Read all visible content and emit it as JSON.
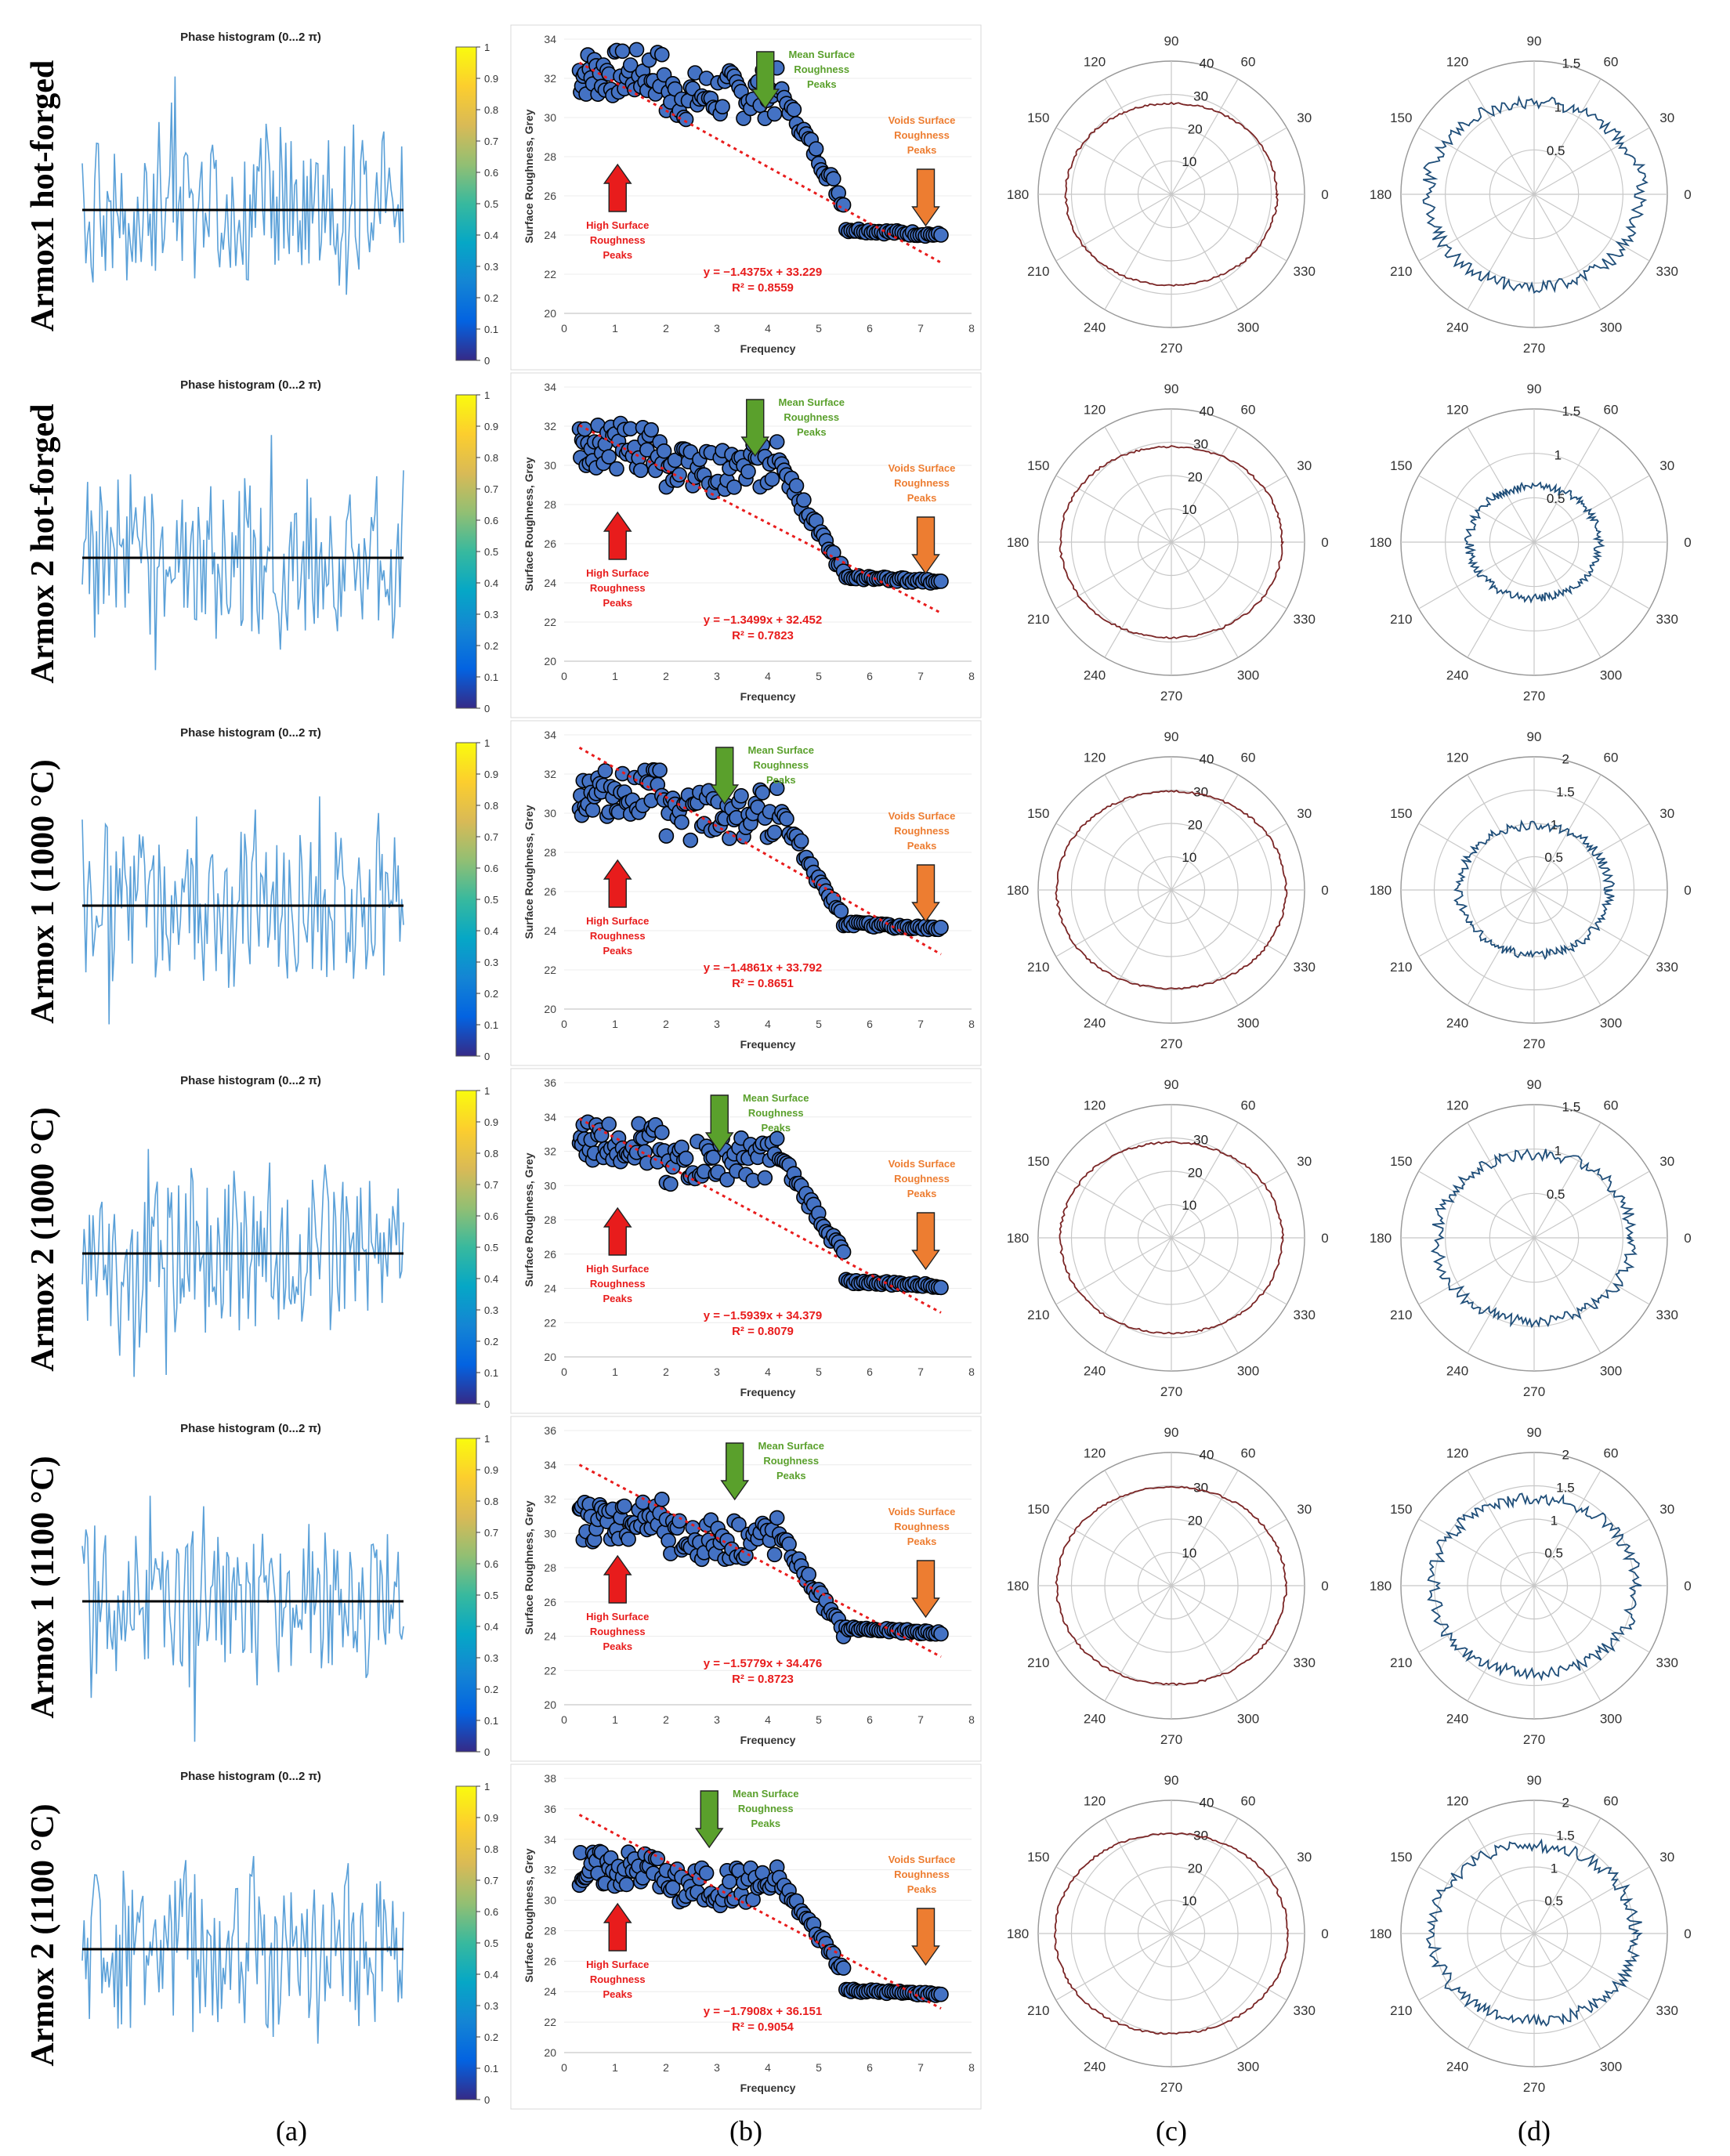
{
  "rows": [
    {
      "label": "Armox1 hot-forged",
      "phase_title": "Phase histogram (0...2 π)",
      "colorbar_ticks": [
        "0",
        "0.1",
        "0.2",
        "0.3",
        "0.4",
        "0.5",
        "0.6",
        "0.7",
        "0.8",
        "0.9",
        "1"
      ],
      "scatter": {
        "ylabel": "Surface Roughness, Grey",
        "xlabel": "Frequency",
        "ylim": [
          20,
          34
        ],
        "yticks": [
          "20",
          "22",
          "24",
          "26",
          "28",
          "30",
          "32",
          "34"
        ],
        "xticks": [
          "0",
          "1",
          "2",
          "3",
          "4",
          "5",
          "6",
          "7",
          "8"
        ],
        "eq": "y = −1.4375x + 33.229",
        "r2": "R² = 0.8559",
        "slope": -1.4375,
        "intercept": 33.229,
        "high_label": [
          "High Surface",
          "Roughness",
          "Peaks"
        ],
        "mean_label": [
          "Mean Surface",
          "Roughness",
          "Peaks"
        ],
        "voids_label": [
          "Voids Surface",
          "Roughness",
          "Peaks"
        ],
        "gpx": 3.9,
        "gpy": 32.5
      },
      "polar_c": {
        "rticks": [
          "10",
          "20",
          "30",
          "40"
        ],
        "rmax": 40,
        "rmean": 29.5,
        "angles": [
          "0",
          "30",
          "60",
          "90",
          "120",
          "150",
          "180",
          "210",
          "240",
          "270",
          "300",
          "330"
        ]
      },
      "polar_d": {
        "rticks": [
          "0.5",
          "1",
          "1.5"
        ],
        "rmax": 1.5,
        "rmean": 1.12,
        "angles": [
          "0",
          "30",
          "60",
          "90",
          "120",
          "150",
          "180",
          "210",
          "240",
          "270",
          "300",
          "330"
        ]
      }
    },
    {
      "label": "Armox 2 hot-forged",
      "phase_title": "Phase histogram (0...2 π)",
      "colorbar_ticks": [
        "0",
        "0.1",
        "0.2",
        "0.3",
        "0.4",
        "0.5",
        "0.6",
        "0.7",
        "0.8",
        "0.9",
        "1"
      ],
      "scatter": {
        "ylabel": "Surface Roughness, Grey",
        "xlabel": "Frequency",
        "ylim": [
          20,
          34
        ],
        "yticks": [
          "20",
          "22",
          "24",
          "26",
          "28",
          "30",
          "32",
          "34"
        ],
        "xticks": [
          "0",
          "1",
          "2",
          "3",
          "4",
          "5",
          "6",
          "7",
          "8"
        ],
        "eq": "y = −1.3499x + 32.452",
        "r2": "R² = 0.7823",
        "slope": -1.3499,
        "intercept": 32.452,
        "high_label": [
          "High Surface",
          "Roughness",
          "Peaks"
        ],
        "mean_label": [
          "Mean Surface",
          "Roughness",
          "Peaks"
        ],
        "voids_label": [
          "Voids Surface",
          "Roughness",
          "Peaks"
        ],
        "gpx": 3.7,
        "gpy": 31.2
      },
      "polar_c": {
        "rticks": [
          "10",
          "20",
          "30",
          "40"
        ],
        "rmax": 40,
        "rmean": 31,
        "angles": [
          "0",
          "30",
          "60",
          "90",
          "120",
          "150",
          "180",
          "210",
          "240",
          "270",
          "300",
          "330"
        ]
      },
      "polar_d": {
        "rticks": [
          "0.5",
          "1",
          "1.5"
        ],
        "rmax": 1.5,
        "rmean": 0.68,
        "angles": [
          "0",
          "30",
          "60",
          "90",
          "120",
          "150",
          "180",
          "210",
          "240",
          "270",
          "300",
          "330"
        ]
      }
    },
    {
      "label": "Armox 1 (1000 °C)",
      "phase_title": "Phase histogram (0...2 π)",
      "colorbar_ticks": [
        "0",
        "0.1",
        "0.2",
        "0.3",
        "0.4",
        "0.5",
        "0.6",
        "0.7",
        "0.8",
        "0.9",
        "1"
      ],
      "scatter": {
        "ylabel": "Surface Roughness, Grey",
        "xlabel": "Frequency",
        "ylim": [
          20,
          34
        ],
        "yticks": [
          "20",
          "22",
          "24",
          "26",
          "28",
          "30",
          "32",
          "34"
        ],
        "xticks": [
          "0",
          "1",
          "2",
          "3",
          "4",
          "5",
          "6",
          "7",
          "8"
        ],
        "eq": "y = −1.4861x + 33.792",
        "r2": "R² = 0.8651",
        "slope": -1.4861,
        "intercept": 33.792,
        "high_label": [
          "High Surface",
          "Roughness",
          "Peaks"
        ],
        "mean_label": [
          "Mean Surface",
          "Roughness",
          "Peaks"
        ],
        "voids_label": [
          "Voids Surface",
          "Roughness",
          "Peaks"
        ],
        "gpx": 3.1,
        "gpy": 31.3
      },
      "polar_c": {
        "rticks": [
          "10",
          "20",
          "30",
          "40"
        ],
        "rmax": 40,
        "rmean": 32,
        "angles": [
          "0",
          "30",
          "60",
          "90",
          "120",
          "150",
          "180",
          "210",
          "240",
          "270",
          "300",
          "330"
        ]
      },
      "polar_d": {
        "rticks": [
          "0.5",
          "1",
          "1.5",
          "2"
        ],
        "rmax": 2,
        "rmean": 1.05,
        "angles": [
          "0",
          "30",
          "60",
          "90",
          "120",
          "150",
          "180",
          "210",
          "240",
          "270",
          "300",
          "330"
        ]
      }
    },
    {
      "label": "Armox 2 (1000 °C)",
      "phase_title": "Phase histogram (0...2 π)",
      "colorbar_ticks": [
        "0",
        "0.1",
        "0.2",
        "0.3",
        "0.4",
        "0.5",
        "0.6",
        "0.7",
        "0.8",
        "0.9",
        "1"
      ],
      "scatter": {
        "ylabel": "Surface Roughness, Grey",
        "xlabel": "Frequency",
        "ylim": [
          20,
          36
        ],
        "yticks": [
          "20",
          "22",
          "24",
          "26",
          "28",
          "30",
          "32",
          "34",
          "36"
        ],
        "xticks": [
          "0",
          "1",
          "2",
          "3",
          "4",
          "5",
          "6",
          "7",
          "8"
        ],
        "eq": "y = −1.5939x + 34.379",
        "r2": "R² = 0.8079",
        "slope": -1.5939,
        "intercept": 34.379,
        "high_label": [
          "High Surface",
          "Roughness",
          "Peaks"
        ],
        "mean_label": [
          "Mean Surface",
          "Roughness",
          "Peaks"
        ],
        "voids_label": [
          "Voids Surface",
          "Roughness",
          "Peaks"
        ],
        "gpx": 3.0,
        "gpy": 32.8
      },
      "polar_c": {
        "rticks": [
          "10",
          "20",
          "30"
        ],
        "rmax": 40,
        "rmean": 31,
        "angles": [
          "0",
          "30",
          "60",
          "90",
          "120",
          "150",
          "180",
          "210",
          "240",
          "270",
          "300",
          "330"
        ]
      },
      "polar_d": {
        "rticks": [
          "0.5",
          "1",
          "1.5"
        ],
        "rmax": 1.5,
        "rmean": 1.02,
        "angles": [
          "0",
          "30",
          "60",
          "90",
          "120",
          "150",
          "180",
          "210",
          "240",
          "270",
          "300",
          "330"
        ]
      }
    },
    {
      "label": "Armox 1 (1100 °C)",
      "phase_title": "Phase histogram (0...2 π)",
      "colorbar_ticks": [
        "0",
        "0.1",
        "0.2",
        "0.3",
        "0.4",
        "0.5",
        "0.6",
        "0.7",
        "0.8",
        "0.9",
        "1"
      ],
      "scatter": {
        "ylabel": "Surface Roughness, Grey",
        "xlabel": "Frequency",
        "ylim": [
          20,
          36
        ],
        "yticks": [
          "20",
          "22",
          "24",
          "26",
          "28",
          "30",
          "32",
          "34",
          "36"
        ],
        "xticks": [
          "0",
          "1",
          "2",
          "3",
          "4",
          "5",
          "6",
          "7",
          "8"
        ],
        "eq": "y = −1.5779x + 34.476",
        "r2": "R² = 0.8723",
        "slope": -1.5779,
        "intercept": 34.476,
        "high_label": [
          "High Surface",
          "Roughness",
          "Peaks"
        ],
        "mean_label": [
          "Mean Surface",
          "Roughness",
          "Peaks"
        ],
        "voids_label": [
          "Voids Surface",
          "Roughness",
          "Peaks"
        ],
        "gpx": 3.3,
        "gpy": 31.0
      },
      "polar_c": {
        "rticks": [
          "10",
          "20",
          "30",
          "40"
        ],
        "rmax": 40,
        "rmean": 32,
        "angles": [
          "0",
          "30",
          "60",
          "90",
          "120",
          "150",
          "180",
          "210",
          "240",
          "270",
          "300",
          "330"
        ]
      },
      "polar_d": {
        "rticks": [
          "0.5",
          "1",
          "1.5",
          "2"
        ],
        "rmax": 2,
        "rmean": 1.42,
        "angles": [
          "0",
          "30",
          "60",
          "90",
          "120",
          "150",
          "180",
          "210",
          "240",
          "270",
          "300",
          "330"
        ]
      }
    },
    {
      "label": "Armox 2 (1100 °C)",
      "phase_title": "Phase histogram (0...2 π)",
      "colorbar_ticks": [
        "0",
        "0.1",
        "0.2",
        "0.3",
        "0.4",
        "0.5",
        "0.6",
        "0.7",
        "0.8",
        "0.9",
        "1"
      ],
      "scatter": {
        "ylabel": "Surface Roughness, Grey",
        "xlabel": "Frequency",
        "ylim": [
          20,
          38
        ],
        "yticks": [
          "20",
          "22",
          "24",
          "26",
          "28",
          "30",
          "32",
          "34",
          "36",
          "38"
        ],
        "xticks": [
          "0",
          "1",
          "2",
          "3",
          "4",
          "5",
          "6",
          "7",
          "8"
        ],
        "eq": "y = −1.7908x + 36.151",
        "r2": "R² = 0.9054",
        "slope": -1.7908,
        "intercept": 36.151,
        "high_label": [
          "High Surface",
          "Roughness",
          "Peaks"
        ],
        "mean_label": [
          "Mean Surface",
          "Roughness",
          "Peaks"
        ],
        "voids_label": [
          "Voids Surface",
          "Roughness",
          "Peaks"
        ],
        "gpx": 2.8,
        "gpy": 32.3
      },
      "polar_c": {
        "rticks": [
          "10",
          "20",
          "30",
          "40"
        ],
        "rmax": 40,
        "rmean": 32.5,
        "angles": [
          "0",
          "30",
          "60",
          "90",
          "120",
          "150",
          "180",
          "210",
          "240",
          "270",
          "300",
          "330"
        ]
      },
      "polar_d": {
        "rticks": [
          "0.5",
          "1",
          "1.5",
          "2"
        ],
        "rmax": 2,
        "rmean": 1.42,
        "angles": [
          "0",
          "30",
          "60",
          "90",
          "120",
          "150",
          "180",
          "210",
          "240",
          "270",
          "300",
          "330"
        ]
      }
    }
  ],
  "captions": [
    "(a)",
    "(b)",
    "(c)",
    "(d)"
  ],
  "colors": {
    "phase_line": "#5aa0d8",
    "baseline": "#000000",
    "scatter_fill": "#4472c4",
    "trend": "#e81c1c",
    "high_arrow": "#e81c1c",
    "mean_arrow": "#5aa02c",
    "voids_arrow": "#ed7d31",
    "polar_c_line": "#7a2525",
    "polar_d_line": "#1f4e79",
    "grid": "#c8c8c8"
  },
  "chart_data": [
    {
      "type": "line",
      "title": "Phase histogram (0...2 π)",
      "note": "oscillating phase signal, 6 panels in column (a)"
    },
    {
      "type": "scatter",
      "xlabel": "Frequency",
      "ylabel": "Surface Roughness, Grey",
      "series": [
        {
          "name": "Armox1 hot-forged",
          "trend": "y = −1.4375x + 33.229",
          "r2": 0.8559
        },
        {
          "name": "Armox 2 hot-forged",
          "trend": "y = −1.3499x + 32.452",
          "r2": 0.7823
        },
        {
          "name": "Armox 1 (1000 °C)",
          "trend": "y = −1.4861x + 33.792",
          "r2": 0.8651
        },
        {
          "name": "Armox 2 (1000 °C)",
          "trend": "y = −1.5939x + 34.379",
          "r2": 0.8079
        },
        {
          "name": "Armox 1 (1100 °C)",
          "trend": "y = −1.5779x + 34.476",
          "r2": 0.8723
        },
        {
          "name": "Armox 2 (1100 °C)",
          "trend": "y = −1.7908x + 36.151",
          "r2": 0.9054
        }
      ]
    }
  ]
}
